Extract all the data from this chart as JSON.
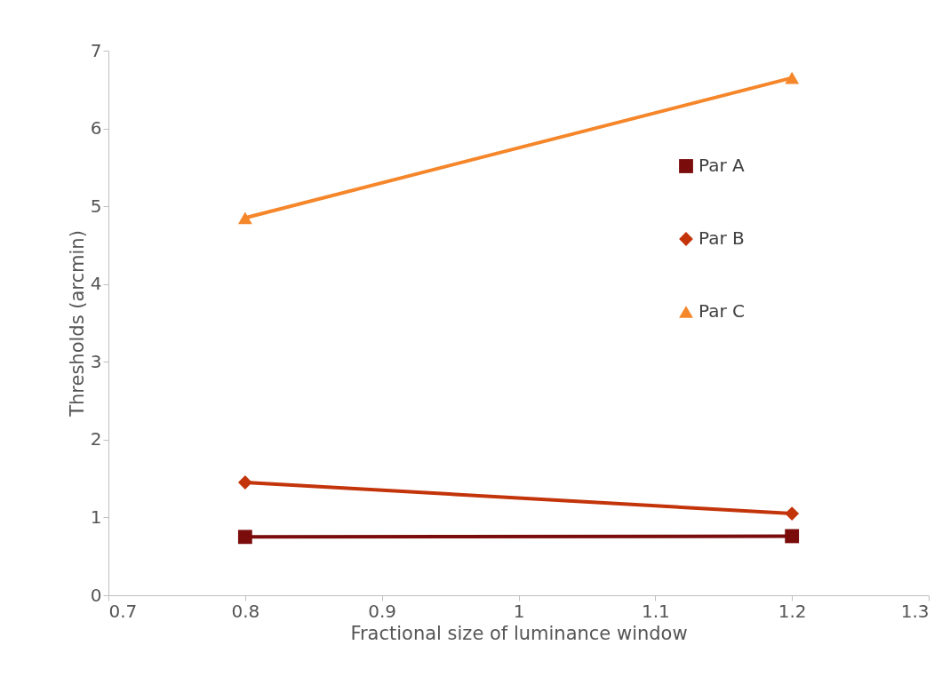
{
  "chart_data": {
    "type": "line",
    "xlabel": "Fractional size of luminance window",
    "ylabel": "Thresholds (arcmin)",
    "x": [
      0.8,
      1.2
    ],
    "series": [
      {
        "name": "Par A",
        "color": "#7b0c0c",
        "marker": "square",
        "values": [
          0.75,
          0.76
        ]
      },
      {
        "name": "Par B",
        "color": "#c3340a",
        "marker": "diamond",
        "values": [
          1.45,
          1.05
        ]
      },
      {
        "name": "Par C",
        "color": "#f5862a",
        "marker": "triangle",
        "values": [
          4.85,
          6.65
        ]
      }
    ],
    "xlim": [
      0.7,
      1.3
    ],
    "xticks": [
      0.7,
      0.8,
      0.9,
      1,
      1.1,
      1.2,
      1.3
    ],
    "ylim": [
      0,
      7
    ],
    "yticks": [
      0,
      1,
      2,
      3,
      4,
      5,
      6,
      7
    ],
    "grid": false,
    "legend": "right",
    "line_style": "solid"
  }
}
